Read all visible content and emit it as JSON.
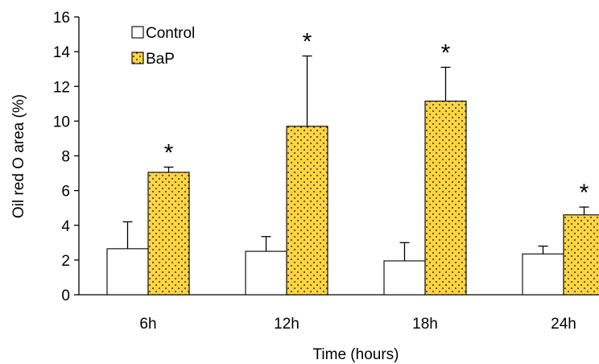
{
  "chart_data": {
    "type": "bar",
    "title": "",
    "xlabel": "Time (hours)",
    "ylabel": "Oil red O area (%)",
    "ylim": [
      0,
      16
    ],
    "yticks": [
      0,
      2,
      4,
      6,
      8,
      10,
      12,
      14,
      16
    ],
    "categories": [
      "6h",
      "12h",
      "18h",
      "24h"
    ],
    "series": [
      {
        "name": "Control",
        "values": [
          2.65,
          2.5,
          1.95,
          2.35
        ],
        "errors": [
          1.55,
          0.85,
          1.05,
          0.45
        ],
        "fill": "#ffffff",
        "pattern": "none"
      },
      {
        "name": "BaP",
        "values": [
          7.05,
          9.7,
          11.15,
          4.6
        ],
        "errors": [
          0.3,
          4.05,
          1.95,
          0.45
        ],
        "fill": "#fdd443",
        "pattern": "dots"
      }
    ],
    "annotations": [
      "*",
      "*",
      "*",
      "*"
    ],
    "legend": "top-left",
    "grid": false
  }
}
